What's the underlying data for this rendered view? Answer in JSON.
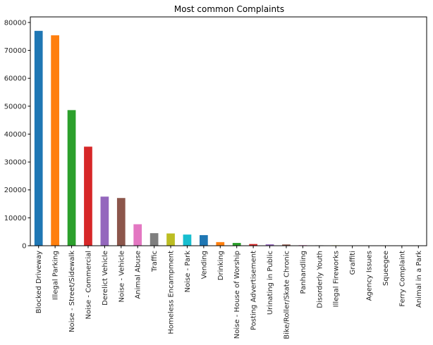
{
  "chart_data": {
    "type": "bar",
    "title": "Most common Complaints",
    "xlabel": "",
    "ylabel": "",
    "ylim": [
      0,
      82000
    ],
    "yticks": [
      0,
      10000,
      20000,
      30000,
      40000,
      50000,
      60000,
      70000,
      80000
    ],
    "categories": [
      "Blocked Driveway",
      "Illegal Parking",
      "Noise - Street/Sidewalk",
      "Noise - Commercial",
      "Derelict Vehicle",
      "Noise - Vehicle",
      "Animal Abuse",
      "Traffic",
      "Homeless Encampment",
      "Noise - Park",
      "Vending",
      "Drinking",
      "Noise - House of Worship",
      "Posting Advertisement",
      "Urinating in Public",
      "Bike/Roller/Skate Chronic",
      "Panhandling",
      "Disorderly Youth",
      "Illegal Fireworks",
      "Graffiti",
      "Agency Issues",
      "Squeegee",
      "Ferry Complaint",
      "Animal in a Park"
    ],
    "values": [
      77000,
      75400,
      48600,
      35500,
      17600,
      17100,
      7700,
      4500,
      4400,
      4000,
      3800,
      1300,
      1000,
      600,
      500,
      450,
      200,
      150,
      150,
      20,
      10,
      5,
      3,
      1
    ],
    "colors": [
      "#1f77b4",
      "#ff7f0e",
      "#2ca02c",
      "#d62728",
      "#9467bd",
      "#8c564b",
      "#e377c2",
      "#7f7f7f",
      "#bcbd22",
      "#17becf"
    ],
    "grid": false,
    "legend": "none"
  }
}
